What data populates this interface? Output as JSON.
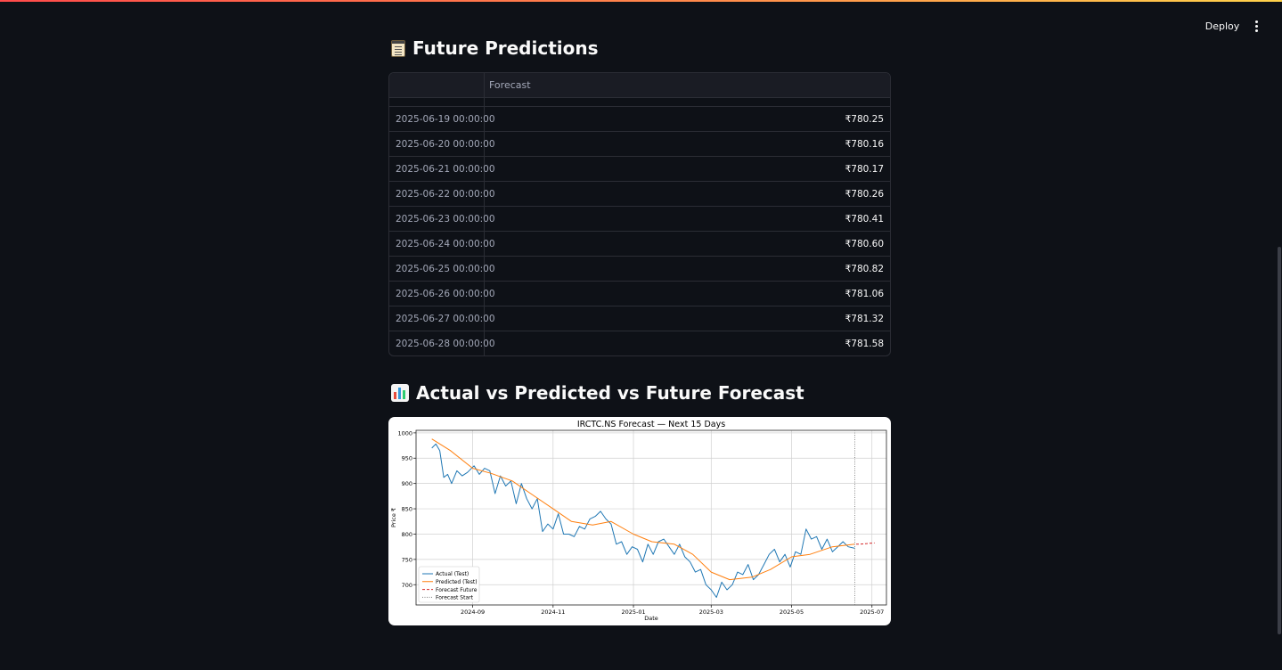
{
  "header": {
    "deploy_label": "Deploy",
    "menu_icon": "kebab-menu-icon"
  },
  "sections": {
    "predictions_title": "Future Predictions",
    "predictions_icon": "notepad-icon",
    "chart_title": "Actual vs Predicted vs Future Forecast",
    "chart_icon": "bar-chart-icon"
  },
  "table": {
    "columns": [
      "",
      "Forecast"
    ],
    "rows": [
      {
        "date": "2025-06-19 00:00:00",
        "forecast": "₹780.25"
      },
      {
        "date": "2025-06-20 00:00:00",
        "forecast": "₹780.16"
      },
      {
        "date": "2025-06-21 00:00:00",
        "forecast": "₹780.17"
      },
      {
        "date": "2025-06-22 00:00:00",
        "forecast": "₹780.26"
      },
      {
        "date": "2025-06-23 00:00:00",
        "forecast": "₹780.41"
      },
      {
        "date": "2025-06-24 00:00:00",
        "forecast": "₹780.60"
      },
      {
        "date": "2025-06-25 00:00:00",
        "forecast": "₹780.82"
      },
      {
        "date": "2025-06-26 00:00:00",
        "forecast": "₹781.06"
      },
      {
        "date": "2025-06-27 00:00:00",
        "forecast": "₹781.32"
      },
      {
        "date": "2025-06-28 00:00:00",
        "forecast": "₹781.58"
      }
    ]
  },
  "chart_data": {
    "type": "line",
    "title": "IRCTC.NS Forecast — Next 15 Days",
    "xlabel": "Date",
    "ylabel": "Price ₹",
    "ylim": [
      660,
      1005
    ],
    "xlim": [
      "2024-07-20",
      "2025-07-12"
    ],
    "yticks": [
      700,
      750,
      800,
      850,
      900,
      950,
      1000
    ],
    "xticks": [
      {
        "date": "2024-09-01",
        "label": "2024-09"
      },
      {
        "date": "2024-11-01",
        "label": "2024-11"
      },
      {
        "date": "2025-01-01",
        "label": "2025-01"
      },
      {
        "date": "2025-03-01",
        "label": "2025-03"
      },
      {
        "date": "2025-05-01",
        "label": "2025-05"
      },
      {
        "date": "2025-07-01",
        "label": "2025-07"
      }
    ],
    "grid": true,
    "legend": "lower-left",
    "series": [
      {
        "name": "Actual (Test)",
        "color": "#1f77b4",
        "style": "solid",
        "points": [
          [
            "2024-08-01",
            970
          ],
          [
            "2024-08-04",
            978
          ],
          [
            "2024-08-07",
            965
          ],
          [
            "2024-08-10",
            912
          ],
          [
            "2024-08-13",
            918
          ],
          [
            "2024-08-16",
            900
          ],
          [
            "2024-08-20",
            925
          ],
          [
            "2024-08-24",
            915
          ],
          [
            "2024-08-28",
            922
          ],
          [
            "2024-09-02",
            935
          ],
          [
            "2024-09-06",
            918
          ],
          [
            "2024-09-10",
            930
          ],
          [
            "2024-09-14",
            925
          ],
          [
            "2024-09-18",
            880
          ],
          [
            "2024-09-22",
            915
          ],
          [
            "2024-09-26",
            895
          ],
          [
            "2024-09-30",
            905
          ],
          [
            "2024-10-04",
            860
          ],
          [
            "2024-10-08",
            900
          ],
          [
            "2024-10-12",
            870
          ],
          [
            "2024-10-16",
            850
          ],
          [
            "2024-10-20",
            870
          ],
          [
            "2024-10-24",
            805
          ],
          [
            "2024-10-28",
            820
          ],
          [
            "2024-11-01",
            810
          ],
          [
            "2024-11-05",
            840
          ],
          [
            "2024-11-09",
            800
          ],
          [
            "2024-11-13",
            800
          ],
          [
            "2024-11-17",
            795
          ],
          [
            "2024-11-21",
            815
          ],
          [
            "2024-11-25",
            810
          ],
          [
            "2024-11-29",
            830
          ],
          [
            "2024-12-03",
            835
          ],
          [
            "2024-12-07",
            845
          ],
          [
            "2024-12-11",
            830
          ],
          [
            "2024-12-15",
            820
          ],
          [
            "2024-12-19",
            780
          ],
          [
            "2024-12-23",
            785
          ],
          [
            "2024-12-27",
            760
          ],
          [
            "2024-12-31",
            775
          ],
          [
            "2025-01-04",
            770
          ],
          [
            "2025-01-08",
            745
          ],
          [
            "2025-01-12",
            780
          ],
          [
            "2025-01-16",
            760
          ],
          [
            "2025-01-20",
            785
          ],
          [
            "2025-01-24",
            790
          ],
          [
            "2025-01-28",
            775
          ],
          [
            "2025-02-01",
            760
          ],
          [
            "2025-02-05",
            780
          ],
          [
            "2025-02-09",
            755
          ],
          [
            "2025-02-13",
            745
          ],
          [
            "2025-02-17",
            725
          ],
          [
            "2025-02-21",
            730
          ],
          [
            "2025-02-25",
            700
          ],
          [
            "2025-03-01",
            690
          ],
          [
            "2025-03-05",
            675
          ],
          [
            "2025-03-09",
            705
          ],
          [
            "2025-03-13",
            690
          ],
          [
            "2025-03-17",
            700
          ],
          [
            "2025-03-21",
            725
          ],
          [
            "2025-03-25",
            720
          ],
          [
            "2025-03-29",
            740
          ],
          [
            "2025-04-02",
            710
          ],
          [
            "2025-04-06",
            720
          ],
          [
            "2025-04-10",
            740
          ],
          [
            "2025-04-14",
            760
          ],
          [
            "2025-04-18",
            770
          ],
          [
            "2025-04-22",
            745
          ],
          [
            "2025-04-26",
            760
          ],
          [
            "2025-04-30",
            735
          ],
          [
            "2025-05-04",
            765
          ],
          [
            "2025-05-08",
            760
          ],
          [
            "2025-05-12",
            810
          ],
          [
            "2025-05-16",
            790
          ],
          [
            "2025-05-20",
            795
          ],
          [
            "2025-05-24",
            770
          ],
          [
            "2025-05-28",
            790
          ],
          [
            "2025-06-01",
            765
          ],
          [
            "2025-06-05",
            775
          ],
          [
            "2025-06-09",
            785
          ],
          [
            "2025-06-13",
            775
          ],
          [
            "2025-06-18",
            772
          ]
        ]
      },
      {
        "name": "Predicted (Test)",
        "color": "#ff7f0e",
        "style": "solid",
        "points": [
          [
            "2024-08-01",
            988
          ],
          [
            "2024-08-15",
            965
          ],
          [
            "2024-09-01",
            930
          ],
          [
            "2024-09-15",
            920
          ],
          [
            "2024-10-01",
            905
          ],
          [
            "2024-10-15",
            880
          ],
          [
            "2024-11-01",
            850
          ],
          [
            "2024-11-15",
            825
          ],
          [
            "2024-12-01",
            818
          ],
          [
            "2024-12-15",
            825
          ],
          [
            "2025-01-01",
            800
          ],
          [
            "2025-01-15",
            785
          ],
          [
            "2025-02-01",
            780
          ],
          [
            "2025-02-15",
            760
          ],
          [
            "2025-03-01",
            725
          ],
          [
            "2025-03-15",
            710
          ],
          [
            "2025-04-01",
            715
          ],
          [
            "2025-04-15",
            730
          ],
          [
            "2025-05-01",
            755
          ],
          [
            "2025-05-15",
            760
          ],
          [
            "2025-06-01",
            775
          ],
          [
            "2025-06-18",
            780
          ]
        ]
      },
      {
        "name": "Forecast Future",
        "color": "#d62728",
        "style": "dashed",
        "points": [
          [
            "2025-06-19",
            780.25
          ],
          [
            "2025-06-20",
            780.16
          ],
          [
            "2025-06-21",
            780.17
          ],
          [
            "2025-06-22",
            780.26
          ],
          [
            "2025-06-23",
            780.41
          ],
          [
            "2025-06-24",
            780.6
          ],
          [
            "2025-06-25",
            780.82
          ],
          [
            "2025-06-26",
            781.06
          ],
          [
            "2025-06-27",
            781.32
          ],
          [
            "2025-06-28",
            781.58
          ],
          [
            "2025-07-03",
            782.5
          ]
        ]
      },
      {
        "name": "Forecast Start",
        "color": "#7f7f7f",
        "style": "dotted",
        "vline": "2025-06-18"
      }
    ]
  }
}
